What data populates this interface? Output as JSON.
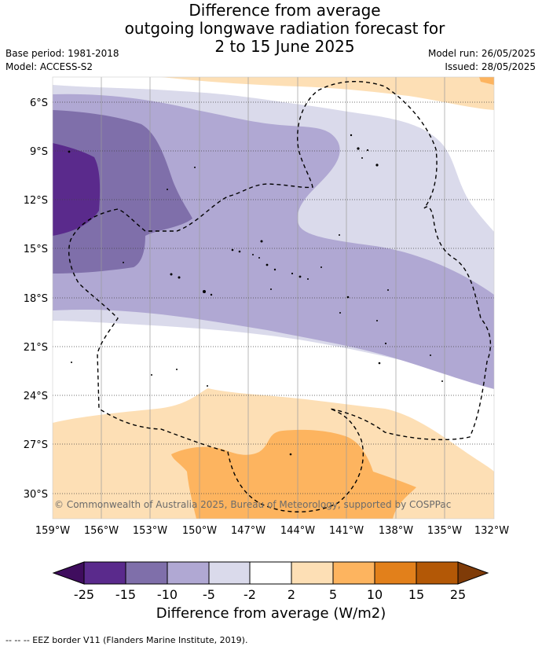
{
  "header": {
    "title_line1": "Difference from average",
    "title_line2": "outgoing longwave radiation forecast for",
    "title_line3": "2 to 15 June 2025",
    "base_period": "Base period: 1981-2018",
    "model": "Model: ACCESS-S2",
    "model_run": "Model run: 26/05/2025",
    "issued": "Issued: 28/05/2025"
  },
  "map": {
    "latitude_labels": [
      "6°S",
      "9°S",
      "12°S",
      "15°S",
      "18°S",
      "21°S",
      "24°S",
      "27°S",
      "30°S"
    ],
    "longitude_labels": [
      "159°W",
      "156°W",
      "153°W",
      "150°W",
      "147°W",
      "144°W",
      "141°W",
      "138°W",
      "135°W",
      "132°W"
    ],
    "copyright": "© Commonwealth of Australia 2025, Bureau of Meteorology, supported by COSPPac"
  },
  "colorbar": {
    "ticks": [
      "-25",
      "-15",
      "-10",
      "-5",
      "-2",
      "2",
      "5",
      "10",
      "15",
      "25"
    ],
    "colors": {
      "below_-25": "#3f0d5e",
      "-25_-15": "#5a2a8c",
      "-15_-10": "#7f6faa",
      "-10_-5": "#b0a8d3",
      "-5_-2": "#dadaeb",
      "-2_2": "#ffffff",
      "2_5": "#fddfb5",
      "5_10": "#fdb45f",
      "10_15": "#e2801b",
      "15_25": "#b35806",
      "above_25": "#7f3b08"
    },
    "title": "Difference from average (W/m2)"
  },
  "footnote": "-- -- -- EEZ border V11 (Flanders Marine Institute, 2019)."
}
